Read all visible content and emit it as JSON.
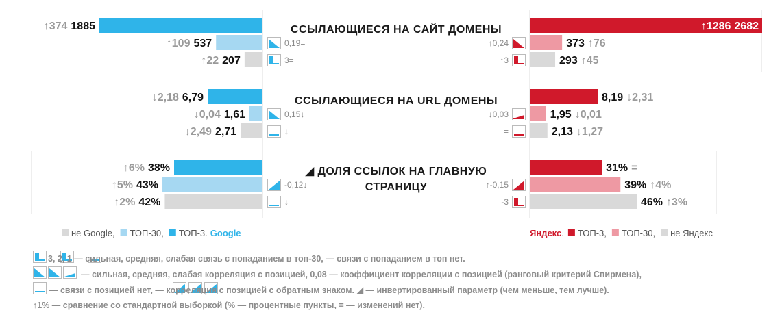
{
  "colors": {
    "google_top3": "#2fb4e9",
    "google_top30": "#a6d8f2",
    "yandex_top3": "#d0192b",
    "yandex_top30": "#ee99a3",
    "not_top": "#d9d9d9"
  },
  "chart_data": {
    "type": "bar",
    "orientation": "horizontal-butterfly",
    "groups": [
      {
        "title_lines": [
          "ССЫЛАЮЩИЕСЯ НА САЙТ ДОМЕНЫ"
        ],
        "inverted": false,
        "google": [
          {
            "series": "ТОП-3",
            "value": 1885,
            "label": "1885",
            "delta": "↑374"
          },
          {
            "series": "ТОП-30",
            "value": 537,
            "label": "537",
            "delta": "↑109"
          },
          {
            "series": "не Google",
            "value": 207,
            "label": "207",
            "delta": "↑22"
          }
        ],
        "yandex": [
          {
            "series": "ТОП-3",
            "value": 2682,
            "label": "2682",
            "delta": "↑1286"
          },
          {
            "series": "ТОП-30",
            "value": 373,
            "label": "373",
            "delta": "↑76"
          },
          {
            "series": "не Яндекс",
            "value": 293,
            "label": "293",
            "delta": "↑45"
          }
        ],
        "google_corr": [
          {
            "icon": "corr-medium-icon",
            "text": "0,19="
          },
          {
            "icon": "link-strong-icon",
            "text": "3="
          }
        ],
        "yandex_corr": [
          {
            "icon": "corr-medium-icon",
            "text": "↑0,24"
          },
          {
            "icon": "link-strong-icon",
            "text": "↑3"
          }
        ]
      },
      {
        "title_lines": [
          "ССЫЛАЮЩИЕСЯ НА URL ДОМЕНЫ"
        ],
        "inverted": false,
        "google": [
          {
            "series": "ТОП-3",
            "value": 6.79,
            "label": "6,79",
            "delta": "↓2,18"
          },
          {
            "series": "ТОП-30",
            "value": 1.61,
            "label": "1,61",
            "delta": "↓0,04"
          },
          {
            "series": "не Google",
            "value": 2.71,
            "label": "2,71",
            "delta": "↓2,49"
          }
        ],
        "yandex": [
          {
            "series": "ТОП-3",
            "value": 8.19,
            "label": "8,19",
            "delta": "↓2,31"
          },
          {
            "series": "ТОП-30",
            "value": 1.95,
            "label": "1,95",
            "delta": "↓0,01"
          },
          {
            "series": "не Яндекс",
            "value": 2.13,
            "label": "2,13",
            "delta": "↓1,27"
          }
        ],
        "google_corr": [
          {
            "icon": "corr-medium-icon",
            "text": "0,15↓"
          },
          {
            "icon": "no-link-icon",
            "text": "↓"
          }
        ],
        "yandex_corr": [
          {
            "icon": "corr-weak-icon",
            "text": "↓0,03"
          },
          {
            "icon": "no-link-icon",
            "text": "="
          }
        ]
      },
      {
        "title_lines": [
          "◢ ДОЛЯ ССЫЛОК НА ГЛАВНУЮ",
          "СТРАНИЦУ"
        ],
        "inverted": true,
        "google": [
          {
            "series": "ТОП-3",
            "value": 38,
            "label": "38%",
            "delta": "↑6%"
          },
          {
            "series": "ТОП-30",
            "value": 43,
            "label": "43%",
            "delta": "↑5%"
          },
          {
            "series": "не Google",
            "value": 42,
            "label": "42%",
            "delta": "↑2%"
          }
        ],
        "yandex": [
          {
            "series": "ТОП-3",
            "value": 31,
            "label": "31%",
            "delta": "="
          },
          {
            "series": "ТОП-30",
            "value": 39,
            "label": "39%",
            "delta": "↑4%"
          },
          {
            "series": "не Яндекс",
            "value": 46,
            "label": "46%",
            "delta": "↑3%"
          }
        ],
        "google_corr": [
          {
            "icon": "corr-inverse-medium-icon",
            "text": "-0,12↓"
          },
          {
            "icon": "no-link-icon",
            "text": "↓"
          }
        ],
        "yandex_corr": [
          {
            "icon": "corr-inverse-medium-icon",
            "text": "↑-0,15"
          },
          {
            "icon": "link-strong-icon",
            "text": "=-3"
          }
        ]
      }
    ],
    "legend_google": {
      "items": [
        "не Google,",
        "ТОП-30,",
        "ТОП-3."
      ],
      "brand": "Google"
    },
    "legend_yandex": {
      "brand": "Яндекс",
      "brand_suffix": ".",
      "items": [
        "ТОП-3,",
        "ТОП-30,",
        "не Яндекс"
      ]
    }
  },
  "footnote_lines": [
    "3,   2,   1 — сильная, средняя, слабая связь с попаданием в топ-30,    — связи с попаданием в топ нет.",
    "— сильная, средняя, слабая корреляция с позицией, 0,08 — коэффициент корреляции с позицией (ранговый критерий Спирмена),",
    "— связи с позицией нет,      — корреляция с позицией с обратным знаком.  ◢ — инвертированный параметр (чем меньше, тем лучше).",
    "↑1% — сравнение со стандартной выборкой (% — процентные пункты, = — изменений нет)."
  ]
}
